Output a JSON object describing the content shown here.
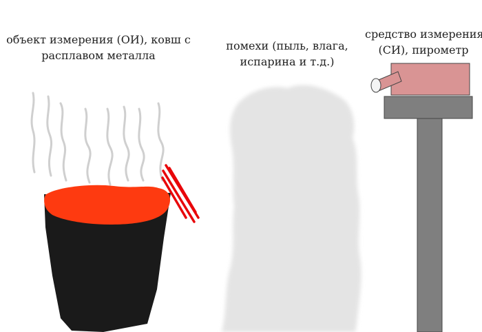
{
  "labels": {
    "object": {
      "line1": "объект измерения (ОИ), ковш с",
      "line2": "расплавом металла"
    },
    "interference": {
      "line1": "помехи (пыль, влага,",
      "line2": "испарина и т.д.)"
    },
    "instrument": {
      "line1": "средство измерения",
      "line2": "(СИ), пирометр"
    }
  },
  "colors": {
    "ladle_body": "#1a1a1a",
    "molten_metal": "#fe3a10",
    "heat_rays": "#e8060a",
    "steam": "#cfcfcf",
    "interference_cloud": "#e4e4e4",
    "pyrometer_body": "#d99494",
    "stand": "#7f7f7f"
  }
}
